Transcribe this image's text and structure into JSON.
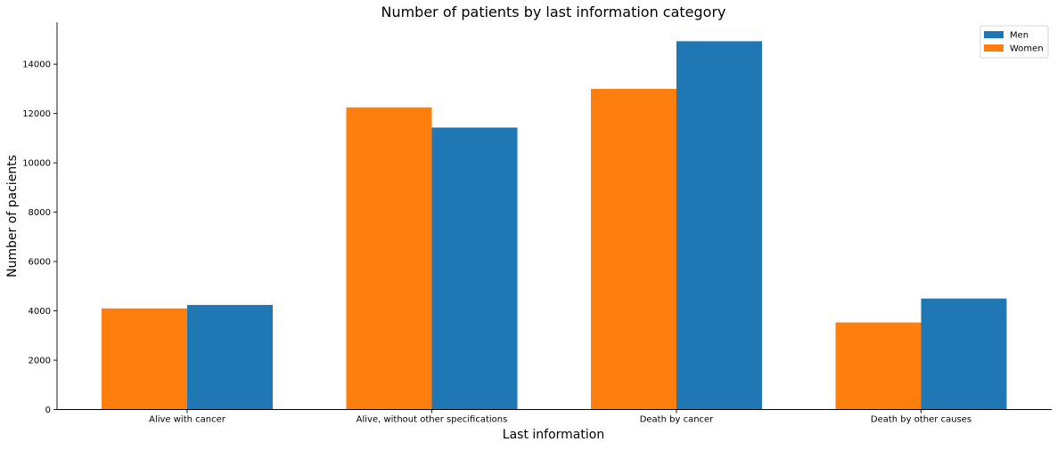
{
  "chart_data": {
    "type": "bar",
    "title": "Number of patients by last information category",
    "xlabel": "Last information",
    "ylabel": "Number of pacients",
    "categories": [
      "Alive with cancer",
      "Alive, without other specifications",
      "Death by cancer",
      "Death by other causes"
    ],
    "series": [
      {
        "name": "Women",
        "color": "#ff7f0e",
        "values": [
          4100,
          12250,
          13000,
          3530
        ]
      },
      {
        "name": "Men",
        "color": "#1f77b4",
        "values": [
          4240,
          11430,
          14930,
          4500
        ]
      }
    ],
    "legend_order": [
      "Men",
      "Women"
    ],
    "legend_position": "top-right",
    "ylim": [
      0,
      15700
    ],
    "yticks": [
      0,
      2000,
      4000,
      6000,
      8000,
      10000,
      12000,
      14000
    ],
    "grid": false,
    "spines": "left-bottom"
  }
}
